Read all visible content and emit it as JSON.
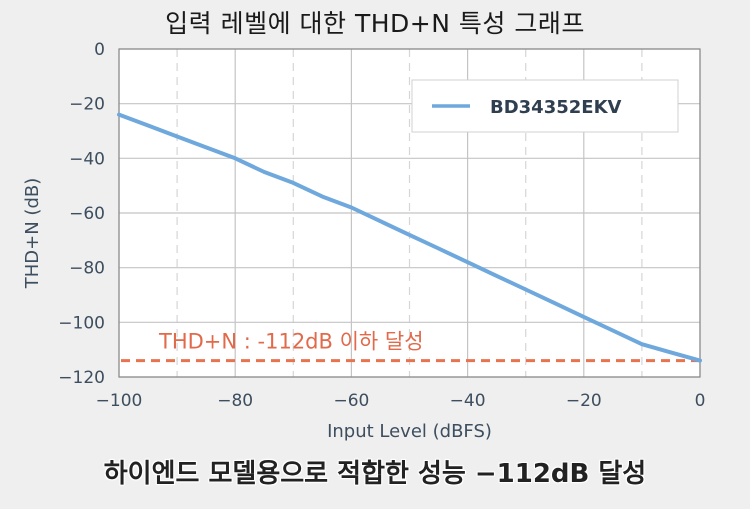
{
  "title": "입력 레벨에 대한 THD+N 특성 그래프",
  "caption": "하이엔드 모델용으로 적합한 성능 −112dB 달성",
  "chart_data": {
    "type": "line",
    "xlabel": "Input Level (dBFS)",
    "ylabel": "THD+N (dB)",
    "xlim": [
      -100,
      0
    ],
    "ylim": [
      -120,
      0
    ],
    "x_ticks": [
      -100,
      -80,
      -60,
      -40,
      -20,
      0
    ],
    "y_ticks": [
      0,
      -20,
      -40,
      -60,
      -80,
      -100,
      -120
    ],
    "x_tick_labels": [
      "−100",
      "−80",
      "−60",
      "−40",
      "−20",
      "0"
    ],
    "y_tick_labels": [
      "0",
      "−20",
      "−40",
      "−60",
      "−80",
      "−100",
      "−120"
    ],
    "grid": true,
    "legend_position": "top-right",
    "series": [
      {
        "name": "BD34352EKV",
        "color": "#6fa8dc",
        "x": [
          -100,
          -95,
          -90,
          -85,
          -80,
          -75,
          -70,
          -65,
          -60,
          -55,
          -50,
          -45,
          -40,
          -35,
          -30,
          -25,
          -20,
          -15,
          -10,
          -5,
          0
        ],
        "y": [
          -24,
          -28,
          -32,
          -36,
          -40,
          -45,
          -49,
          -54,
          -58,
          -63,
          -68,
          -73,
          -78,
          -83,
          -88,
          -93,
          -98,
          -103,
          -108,
          -111,
          -114
        ]
      }
    ],
    "reference_line": {
      "y": -114,
      "color": "#e8734f",
      "style": "dashed",
      "label": "THD+N : -112dB 이하 달성"
    }
  }
}
